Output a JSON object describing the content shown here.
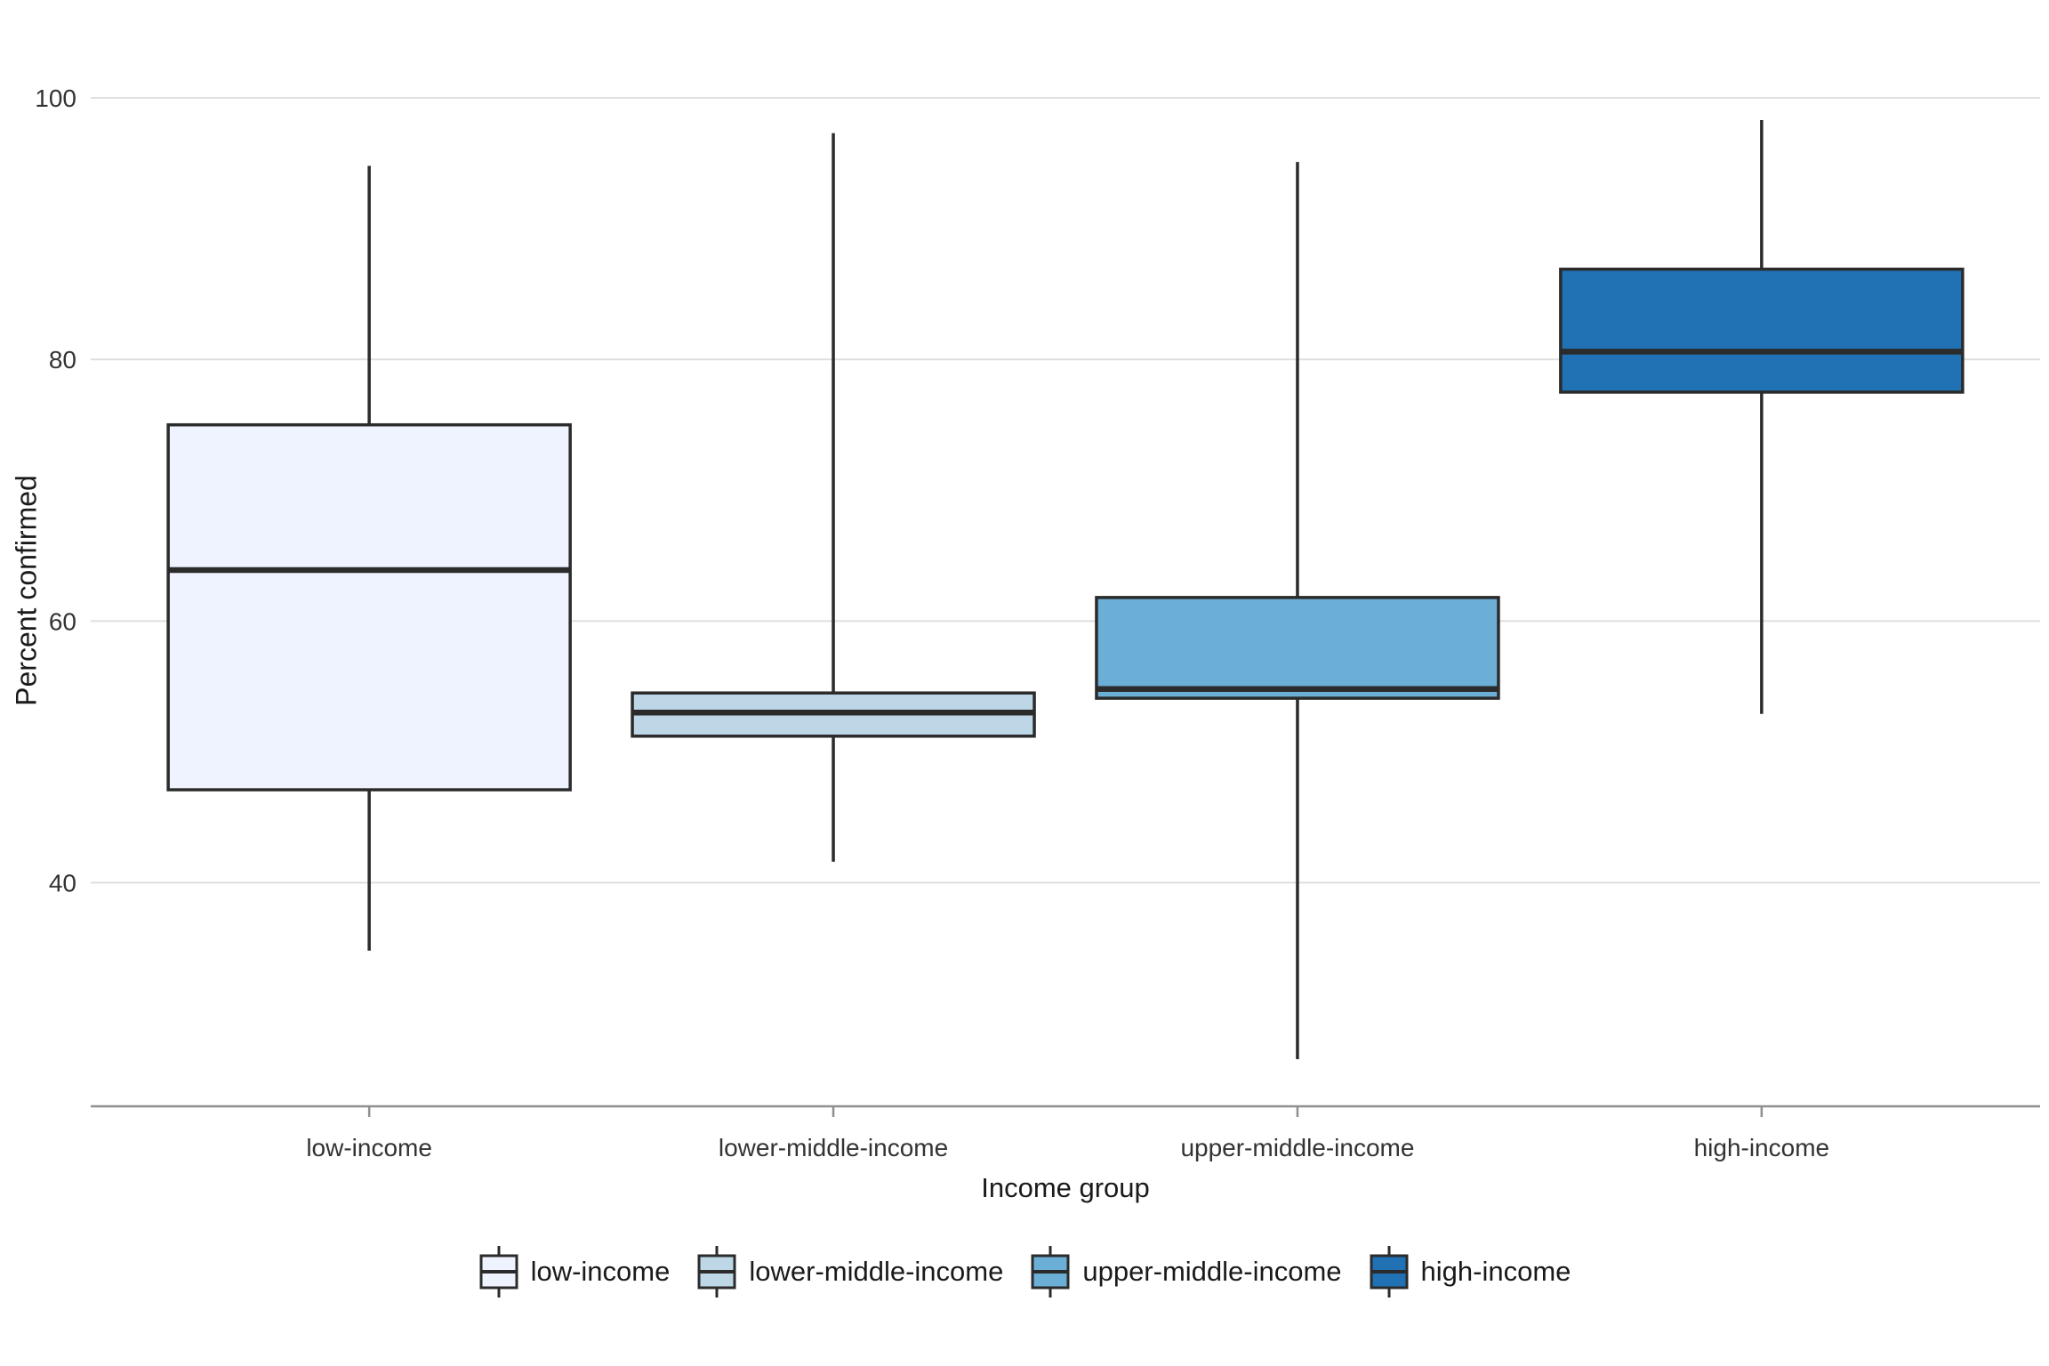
{
  "chart_data": {
    "type": "boxplot",
    "title": "",
    "xlabel": "Income group",
    "ylabel": "Percent confirmed",
    "categories": [
      "low-income",
      "lower-middle-income",
      "upper-middle-income",
      "high-income"
    ],
    "yticks": [
      40,
      60,
      80,
      100
    ],
    "ylim": [
      22.9,
      101.7
    ],
    "grid": "horizontal-only",
    "legend_position": "bottom",
    "series": [
      {
        "name": "low-income",
        "color": "#EFF3FF",
        "min": 34.8,
        "q1": 47.1,
        "median": 63.9,
        "q3": 75.0,
        "max": 94.8
      },
      {
        "name": "lower-middle-income",
        "color": "#BDD7E7",
        "min": 41.6,
        "q1": 51.2,
        "median": 53.0,
        "q3": 54.5,
        "max": 97.3
      },
      {
        "name": "upper-middle-income",
        "color": "#6BAED6",
        "min": 26.5,
        "q1": 54.1,
        "median": 54.8,
        "q3": 61.8,
        "max": 95.1
      },
      {
        "name": "high-income",
        "color": "#2171B5",
        "min": 52.9,
        "q1": 77.5,
        "median": 80.6,
        "q3": 86.9,
        "max": 98.3
      }
    ],
    "style": {
      "box_border_color": "#2b2b2b",
      "gridline_color": "#dfdfdf",
      "axis_line_color": "#8f8f8f",
      "tick_label_color": "#333333"
    }
  }
}
